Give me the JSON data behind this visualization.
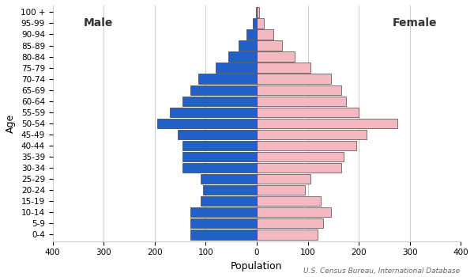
{
  "xlabel": "Population",
  "ylabel": "Age",
  "source": "U.S. Census Bureau, International Database",
  "male_label": "Male",
  "female_label": "Female",
  "age_groups": [
    "0-4",
    "5-9",
    "10-14",
    "15-19",
    "20-24",
    "25-29",
    "30-34",
    "35-39",
    "40-44",
    "45-49",
    "50-54",
    "55-59",
    "60-64",
    "65-69",
    "70-74",
    "75-79",
    "80-84",
    "85-89",
    "90-94",
    "95-99",
    "100 +"
  ],
  "male_values": [
    130,
    130,
    130,
    110,
    105,
    110,
    145,
    145,
    145,
    155,
    195,
    170,
    145,
    130,
    115,
    80,
    55,
    35,
    20,
    8,
    2
  ],
  "female_values": [
    120,
    130,
    145,
    125,
    95,
    105,
    165,
    170,
    195,
    215,
    275,
    200,
    175,
    165,
    145,
    105,
    75,
    50,
    32,
    14,
    4
  ],
  "male_color": "#2060c8",
  "female_color": "#f4b8c0",
  "bar_edge_color": "#222222",
  "xlim": 400,
  "background_color": "#ffffff",
  "grid_color": "#cccccc",
  "label_fontsize": 9,
  "tick_fontsize": 7.5,
  "source_fontsize": 6.5
}
